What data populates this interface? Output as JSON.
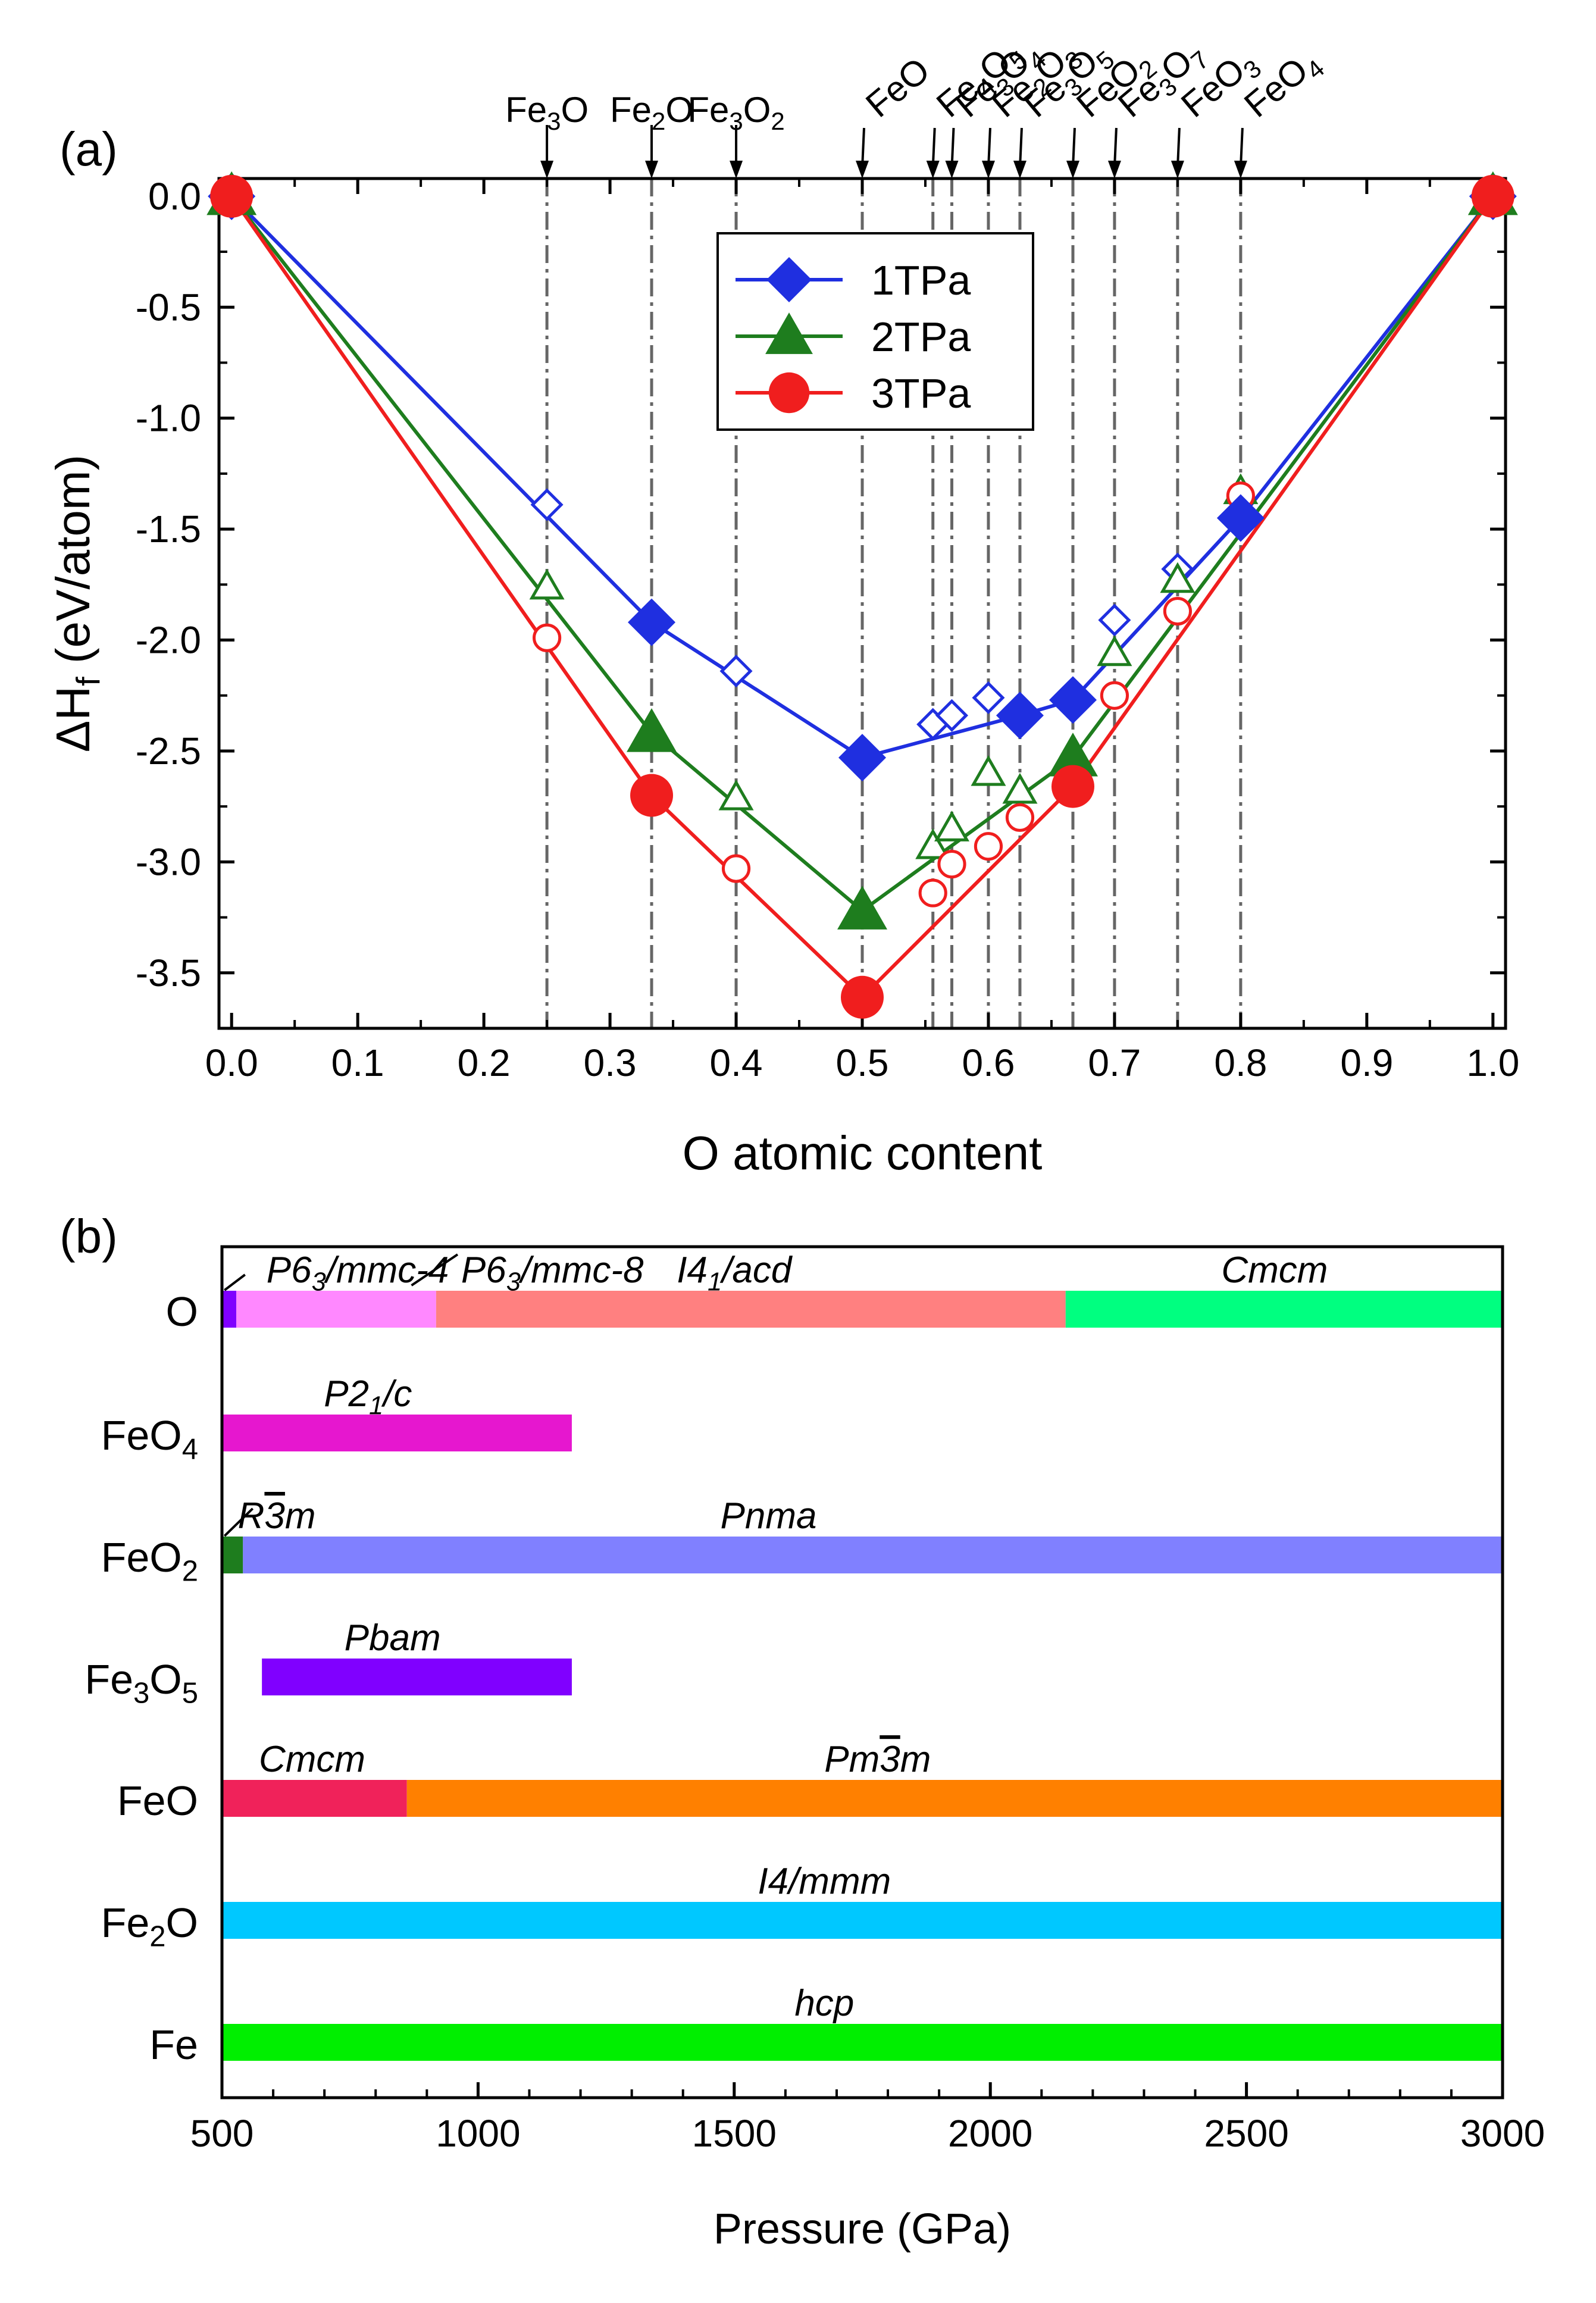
{
  "panel_labels": {
    "a": "(a)",
    "b": "(b)"
  },
  "chart_data": [
    {
      "type": "line",
      "title": "",
      "xlabel": "O atomic content",
      "ylabel": {
        "main": "ΔH",
        "sub": "f",
        "unit": "(eV/atom)"
      },
      "xlim": [
        -0.01,
        1.01
      ],
      "ylim": [
        -3.75,
        0.08
      ],
      "xticks": [
        0.0,
        0.1,
        0.2,
        0.3,
        0.4,
        0.5,
        0.6,
        0.7,
        0.8,
        0.9,
        1.0
      ],
      "yticks": [
        0.0,
        -0.5,
        -1.0,
        -1.5,
        -2.0,
        -2.5,
        -3.0,
        -3.5
      ],
      "xtick_labels": [
        "0.0",
        "0.1",
        "0.2",
        "0.3",
        "0.4",
        "0.5",
        "0.6",
        "0.7",
        "0.8",
        "0.9",
        "1.0"
      ],
      "ytick_labels": [
        "0.0",
        "-0.5",
        "-1.0",
        "-1.5",
        "-2.0",
        "-2.5",
        "-3.0",
        "-3.5"
      ],
      "legend": {
        "position": "top-center",
        "entries": [
          "1TPa",
          "2TPa",
          "3TPa"
        ]
      },
      "compositions": [
        {
          "x": 0.25,
          "parts": [
            [
              "Fe",
              ""
            ],
            [
              "",
              "3"
            ],
            [
              "O",
              ""
            ]
          ]
        },
        {
          "x": 0.333,
          "parts": [
            [
              "Fe",
              ""
            ],
            [
              "",
              "2"
            ],
            [
              "O",
              ""
            ]
          ]
        },
        {
          "x": 0.4,
          "parts": [
            [
              "Fe",
              ""
            ],
            [
              "",
              "3"
            ],
            [
              "O",
              ""
            ],
            [
              "",
              "2"
            ]
          ]
        },
        {
          "x": 0.5,
          "parts": [
            [
              "FeO",
              ""
            ]
          ]
        },
        {
          "x": 0.556,
          "parts": [
            [
              "Fe",
              ""
            ],
            [
              "",
              "4"
            ],
            [
              "O",
              ""
            ],
            [
              "",
              "5"
            ]
          ]
        },
        {
          "x": 0.571,
          "parts": [
            [
              "Fe",
              ""
            ],
            [
              "",
              "3"
            ],
            [
              "O",
              ""
            ],
            [
              "",
              "4"
            ]
          ]
        },
        {
          "x": 0.6,
          "parts": [
            [
              "Fe",
              ""
            ],
            [
              "",
              "2"
            ],
            [
              "O",
              ""
            ],
            [
              "",
              "3"
            ]
          ]
        },
        {
          "x": 0.625,
          "parts": [
            [
              "Fe",
              ""
            ],
            [
              "",
              "3"
            ],
            [
              "O",
              ""
            ],
            [
              "",
              "5"
            ]
          ]
        },
        {
          "x": 0.667,
          "parts": [
            [
              "FeO",
              ""
            ],
            [
              "",
              "2"
            ]
          ]
        },
        {
          "x": 0.7,
          "parts": [
            [
              "Fe",
              ""
            ],
            [
              "",
              "3"
            ],
            [
              "O",
              ""
            ],
            [
              "",
              "7"
            ]
          ]
        },
        {
          "x": 0.75,
          "parts": [
            [
              "FeO",
              ""
            ],
            [
              "",
              "3"
            ]
          ]
        },
        {
          "x": 0.8,
          "parts": [
            [
              "FeO",
              ""
            ],
            [
              "",
              "4"
            ]
          ]
        }
      ],
      "series": [
        {
          "name": "1TPa",
          "color": "#1f2fe0",
          "marker": "diamond",
          "hull": [
            [
              0,
              0
            ],
            [
              0.333,
              -1.92
            ],
            [
              0.5,
              -2.53
            ],
            [
              0.625,
              -2.34
            ],
            [
              0.667,
              -2.27
            ],
            [
              0.8,
              -1.45
            ],
            [
              1,
              0
            ]
          ],
          "metastable": [
            [
              0.25,
              -1.39
            ],
            [
              0.4,
              -2.14
            ],
            [
              0.556,
              -2.38
            ],
            [
              0.571,
              -2.34
            ],
            [
              0.6,
              -2.26
            ],
            [
              0.7,
              -1.91
            ],
            [
              0.75,
              -1.68
            ]
          ]
        },
        {
          "name": "2TPa",
          "color": "#1e7d1e",
          "marker": "triangle",
          "hull": [
            [
              0,
              0
            ],
            [
              0.333,
              -2.42
            ],
            [
              0.5,
              -3.22
            ],
            [
              0.667,
              -2.53
            ],
            [
              1,
              0
            ]
          ],
          "metastable": [
            [
              0.25,
              -1.76
            ],
            [
              0.4,
              -2.71
            ],
            [
              0.556,
              -2.93
            ],
            [
              0.571,
              -2.85
            ],
            [
              0.6,
              -2.6
            ],
            [
              0.625,
              -2.68
            ],
            [
              0.7,
              -2.06
            ],
            [
              0.75,
              -1.73
            ],
            [
              0.8,
              -1.33
            ]
          ]
        },
        {
          "name": "3TPa",
          "color": "#f01e1e",
          "marker": "circle",
          "hull": [
            [
              0,
              0
            ],
            [
              0.333,
              -2.7
            ],
            [
              0.5,
              -3.61
            ],
            [
              0.667,
              -2.66
            ],
            [
              1,
              0
            ]
          ],
          "metastable": [
            [
              0.25,
              -1.99
            ],
            [
              0.4,
              -3.03
            ],
            [
              0.556,
              -3.14
            ],
            [
              0.571,
              -3.01
            ],
            [
              0.6,
              -2.93
            ],
            [
              0.625,
              -2.8
            ],
            [
              0.7,
              -2.25
            ],
            [
              0.75,
              -1.87
            ],
            [
              0.8,
              -1.35
            ]
          ]
        }
      ]
    },
    {
      "type": "bar",
      "orientation": "horizontal-range",
      "xlabel": "Pressure (GPa)",
      "xlim": [
        500,
        3000
      ],
      "xticks": [
        500,
        1000,
        1500,
        2000,
        2500,
        3000
      ],
      "xtick_labels": [
        "500",
        "1000",
        "1500",
        "2000",
        "2500",
        "3000"
      ],
      "rows": [
        {
          "label": [
            [
              "O",
              ""
            ]
          ],
          "segments": [
            {
              "from": 500,
              "to": 528,
              "color": "#8000ff"
            },
            {
              "from": 528,
              "to": 918,
              "color": "#ff88ff"
            },
            {
              "from": 918,
              "to": 2147,
              "color": "#ff8080"
            },
            {
              "from": 2147,
              "to": 3000,
              "color": "#00ff80"
            }
          ]
        },
        {
          "label": [
            [
              "FeO",
              ""
            ],
            [
              "",
              "4"
            ]
          ],
          "segments": [
            {
              "from": 500,
              "to": 1183,
              "color": "#e617cf"
            }
          ]
        },
        {
          "label": [
            [
              "FeO",
              ""
            ],
            [
              "",
              "2"
            ]
          ],
          "segments": [
            {
              "from": 500,
              "to": 541,
              "color": "#1e7d1e"
            },
            {
              "from": 541,
              "to": 3000,
              "color": "#8080ff"
            }
          ]
        },
        {
          "label": [
            [
              "Fe",
              ""
            ],
            [
              "",
              "3"
            ],
            [
              "O",
              ""
            ],
            [
              "",
              "5"
            ]
          ],
          "segments": [
            {
              "from": 578,
              "to": 1183,
              "color": "#8000ff"
            }
          ]
        },
        {
          "label": [
            [
              "FeO",
              ""
            ]
          ],
          "segments": [
            {
              "from": 500,
              "to": 861,
              "color": "#f0225a"
            },
            {
              "from": 861,
              "to": 3000,
              "color": "#ff8000"
            }
          ]
        },
        {
          "label": [
            [
              "Fe",
              ""
            ],
            [
              "",
              "2"
            ],
            [
              "O",
              ""
            ]
          ],
          "segments": [
            {
              "from": 500,
              "to": 3000,
              "color": "#00c8ff"
            }
          ]
        },
        {
          "label": [
            [
              "Fe",
              ""
            ]
          ],
          "segments": [
            {
              "from": 500,
              "to": 3000,
              "color": "#00ef00"
            }
          ]
        }
      ],
      "annotations": [
        {
          "row": 0,
          "at": 765,
          "parts": [
            [
              "P6",
              ""
            ],
            [
              "",
              "3"
            ],
            [
              "/mmc-4",
              ""
            ]
          ]
        },
        {
          "row": 0,
          "at": 1145,
          "parts": [
            [
              "P6",
              ""
            ],
            [
              "",
              "3"
            ],
            [
              "/mmc-8",
              ""
            ]
          ]
        },
        {
          "row": 0,
          "at": 1500,
          "parts": [
            [
              "I4",
              ""
            ],
            [
              "",
              "1"
            ],
            [
              "/acd",
              ""
            ]
          ]
        },
        {
          "row": 0,
          "at": 2555,
          "parts": [
            [
              "Cmcm",
              ""
            ]
          ]
        },
        {
          "row": 1,
          "at": 785,
          "parts": [
            [
              "P2",
              ""
            ],
            [
              "",
              "1"
            ],
            [
              "/c",
              ""
            ]
          ]
        },
        {
          "row": 2,
          "at": 607,
          "parts": [
            [
              "R",
              ""
            ],
            [
              "3",
              "bar"
            ],
            [
              "m",
              ""
            ]
          ]
        },
        {
          "row": 2,
          "at": 1567,
          "parts": [
            [
              "Pnma",
              ""
            ]
          ]
        },
        {
          "row": 3,
          "at": 833,
          "parts": [
            [
              "Pbam",
              ""
            ]
          ]
        },
        {
          "row": 4,
          "at": 676,
          "parts": [
            [
              "Cmcm",
              ""
            ]
          ]
        },
        {
          "row": 4,
          "at": 1780,
          "parts": [
            [
              "Pm",
              ""
            ],
            [
              "3",
              "bar"
            ],
            [
              "m",
              ""
            ]
          ]
        },
        {
          "row": 5,
          "at": 1676,
          "parts": [
            [
              "I4/mmm",
              ""
            ]
          ]
        },
        {
          "row": 6,
          "at": 1676,
          "parts": [
            [
              "hcp",
              ""
            ]
          ]
        }
      ]
    }
  ]
}
